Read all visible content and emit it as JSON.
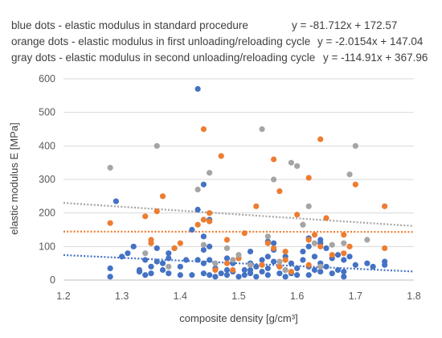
{
  "chart_data": {
    "type": "scatter",
    "legend_lines": [
      {
        "text": "blue dots - elastic modulus in standard procedure",
        "equation": "y = -81.712x + 172.57"
      },
      {
        "text": "orange dots - elastic modulus in first unloading/reloading cycle",
        "equation": "y = -2.0154x + 147.04"
      },
      {
        "text": "gray dots - elastic modulus in second unloading/reloading cycle",
        "equation": "y = -114.91x + 367.96"
      }
    ],
    "legend_position": "top",
    "xlabel": "composite density [g/cm³]",
    "ylabel": "elastic modulus E [MPa]",
    "xlim": [
      1.2,
      1.8
    ],
    "ylim": [
      0,
      600
    ],
    "x_ticks": [
      "1.2",
      "1.3",
      "1.4",
      "1.5",
      "1.6",
      "1.7",
      "1.8"
    ],
    "y_ticks": [
      "0",
      "100",
      "200",
      "300",
      "400",
      "500",
      "600"
    ],
    "grid": true,
    "colors": {
      "blue": "#4472C4",
      "orange": "#ED7D31",
      "gray": "#A5A5A5",
      "grid": "#d9d9d9",
      "axis": "#bfbfbf"
    },
    "series": [
      {
        "color": "#4472C4",
        "trend": {
          "slope": -81.712,
          "intercept": 172.57
        },
        "points": [
          [
            1.28,
            35
          ],
          [
            1.28,
            10
          ],
          [
            1.29,
            235
          ],
          [
            1.31,
            80
          ],
          [
            1.32,
            100
          ],
          [
            1.33,
            30
          ],
          [
            1.33,
            25
          ],
          [
            1.34,
            60
          ],
          [
            1.35,
            40
          ],
          [
            1.35,
            20
          ],
          [
            1.36,
            95
          ],
          [
            1.36,
            55
          ],
          [
            1.37,
            50
          ],
          [
            1.37,
            30
          ],
          [
            1.38,
            80
          ],
          [
            1.38,
            65
          ],
          [
            1.38,
            20
          ],
          [
            1.39,
            95
          ],
          [
            1.4,
            40
          ],
          [
            1.4,
            15
          ],
          [
            1.41,
            60
          ],
          [
            1.42,
            150
          ],
          [
            1.42,
            15
          ],
          [
            1.43,
            570
          ],
          [
            1.43,
            210
          ],
          [
            1.43,
            60
          ],
          [
            1.44,
            285
          ],
          [
            1.44,
            130
          ],
          [
            1.44,
            90
          ],
          [
            1.44,
            50
          ],
          [
            1.44,
            20
          ],
          [
            1.45,
            180
          ],
          [
            1.45,
            100
          ],
          [
            1.45,
            60
          ],
          [
            1.45,
            15
          ],
          [
            1.46,
            35
          ],
          [
            1.46,
            10
          ],
          [
            1.47,
            20
          ],
          [
            1.48,
            65
          ],
          [
            1.48,
            30
          ],
          [
            1.48,
            15
          ],
          [
            1.49,
            50
          ],
          [
            1.49,
            25
          ],
          [
            1.5,
            10
          ],
          [
            1.5,
            65
          ],
          [
            1.51,
            30
          ],
          [
            1.51,
            15
          ],
          [
            1.52,
            85
          ],
          [
            1.52,
            50
          ],
          [
            1.52,
            20
          ],
          [
            1.53,
            40
          ],
          [
            1.53,
            10
          ],
          [
            1.54,
            60
          ],
          [
            1.54,
            25
          ],
          [
            1.55,
            115
          ],
          [
            1.55,
            70
          ],
          [
            1.55,
            35
          ],
          [
            1.55,
            15
          ],
          [
            1.56,
            90
          ],
          [
            1.56,
            55
          ],
          [
            1.56,
            110
          ],
          [
            1.57,
            40
          ],
          [
            1.57,
            20
          ],
          [
            1.58,
            70
          ],
          [
            1.58,
            30
          ],
          [
            1.58,
            10
          ],
          [
            1.59,
            50
          ],
          [
            1.59,
            20
          ],
          [
            1.6,
            35
          ],
          [
            1.6,
            15
          ],
          [
            1.61,
            85
          ],
          [
            1.61,
            60
          ],
          [
            1.62,
            125
          ],
          [
            1.62,
            100
          ],
          [
            1.62,
            40
          ],
          [
            1.62,
            15
          ],
          [
            1.63,
            70
          ],
          [
            1.63,
            30
          ],
          [
            1.64,
            120
          ],
          [
            1.64,
            110
          ],
          [
            1.64,
            50
          ],
          [
            1.64,
            25
          ],
          [
            1.65,
            95
          ],
          [
            1.65,
            40
          ],
          [
            1.66,
            65
          ],
          [
            1.66,
            20
          ],
          [
            1.67,
            75
          ],
          [
            1.67,
            30
          ],
          [
            1.68,
            60
          ],
          [
            1.68,
            25
          ],
          [
            1.68,
            10
          ],
          [
            1.69,
            70
          ],
          [
            1.7,
            45
          ],
          [
            1.72,
            50
          ],
          [
            1.73,
            40
          ],
          [
            1.75,
            55
          ],
          [
            1.75,
            45
          ],
          [
            1.3,
            70
          ],
          [
            1.34,
            15
          ],
          [
            1.52,
            30
          ]
        ]
      },
      {
        "color": "#ED7D31",
        "trend": {
          "slope": -2.0154,
          "intercept": 147.04
        },
        "points": [
          [
            1.28,
            170
          ],
          [
            1.34,
            190
          ],
          [
            1.35,
            110
          ],
          [
            1.36,
            205
          ],
          [
            1.37,
            250
          ],
          [
            1.39,
            95
          ],
          [
            1.4,
            110
          ],
          [
            1.43,
            165
          ],
          [
            1.44,
            180
          ],
          [
            1.44,
            450
          ],
          [
            1.45,
            200
          ],
          [
            1.45,
            175
          ],
          [
            1.47,
            370
          ],
          [
            1.48,
            120
          ],
          [
            1.48,
            50
          ],
          [
            1.49,
            30
          ],
          [
            1.5,
            65
          ],
          [
            1.51,
            140
          ],
          [
            1.53,
            220
          ],
          [
            1.54,
            45
          ],
          [
            1.55,
            110
          ],
          [
            1.56,
            360
          ],
          [
            1.56,
            95
          ],
          [
            1.57,
            265
          ],
          [
            1.57,
            40
          ],
          [
            1.58,
            85
          ],
          [
            1.59,
            25
          ],
          [
            1.6,
            195
          ],
          [
            1.61,
            165
          ],
          [
            1.62,
            305
          ],
          [
            1.62,
            120
          ],
          [
            1.62,
            45
          ],
          [
            1.63,
            135
          ],
          [
            1.64,
            420
          ],
          [
            1.64,
            100
          ],
          [
            1.65,
            185
          ],
          [
            1.66,
            75
          ],
          [
            1.68,
            135
          ],
          [
            1.68,
            80
          ],
          [
            1.69,
            100
          ],
          [
            1.7,
            285
          ],
          [
            1.75,
            220
          ],
          [
            1.75,
            95
          ],
          [
            1.35,
            120
          ],
          [
            1.46,
            30
          ],
          [
            1.58,
            60
          ]
        ]
      },
      {
        "color": "#A5A5A5",
        "trend": {
          "slope": -114.91,
          "intercept": 367.96
        },
        "points": [
          [
            1.28,
            335
          ],
          [
            1.34,
            80
          ],
          [
            1.36,
            400
          ],
          [
            1.43,
            270
          ],
          [
            1.44,
            105
          ],
          [
            1.45,
            320
          ],
          [
            1.48,
            95
          ],
          [
            1.49,
            60
          ],
          [
            1.5,
            75
          ],
          [
            1.52,
            45
          ],
          [
            1.54,
            450
          ],
          [
            1.55,
            130
          ],
          [
            1.56,
            300
          ],
          [
            1.57,
            55
          ],
          [
            1.59,
            350
          ],
          [
            1.6,
            340
          ],
          [
            1.61,
            165
          ],
          [
            1.62,
            220
          ],
          [
            1.63,
            110
          ],
          [
            1.64,
            40
          ],
          [
            1.66,
            105
          ],
          [
            1.68,
            110
          ],
          [
            1.69,
            315
          ],
          [
            1.7,
            400
          ],
          [
            1.72,
            120
          ],
          [
            1.46,
            50
          ],
          [
            1.38,
            40
          ],
          [
            1.58,
            30
          ]
        ]
      }
    ]
  }
}
